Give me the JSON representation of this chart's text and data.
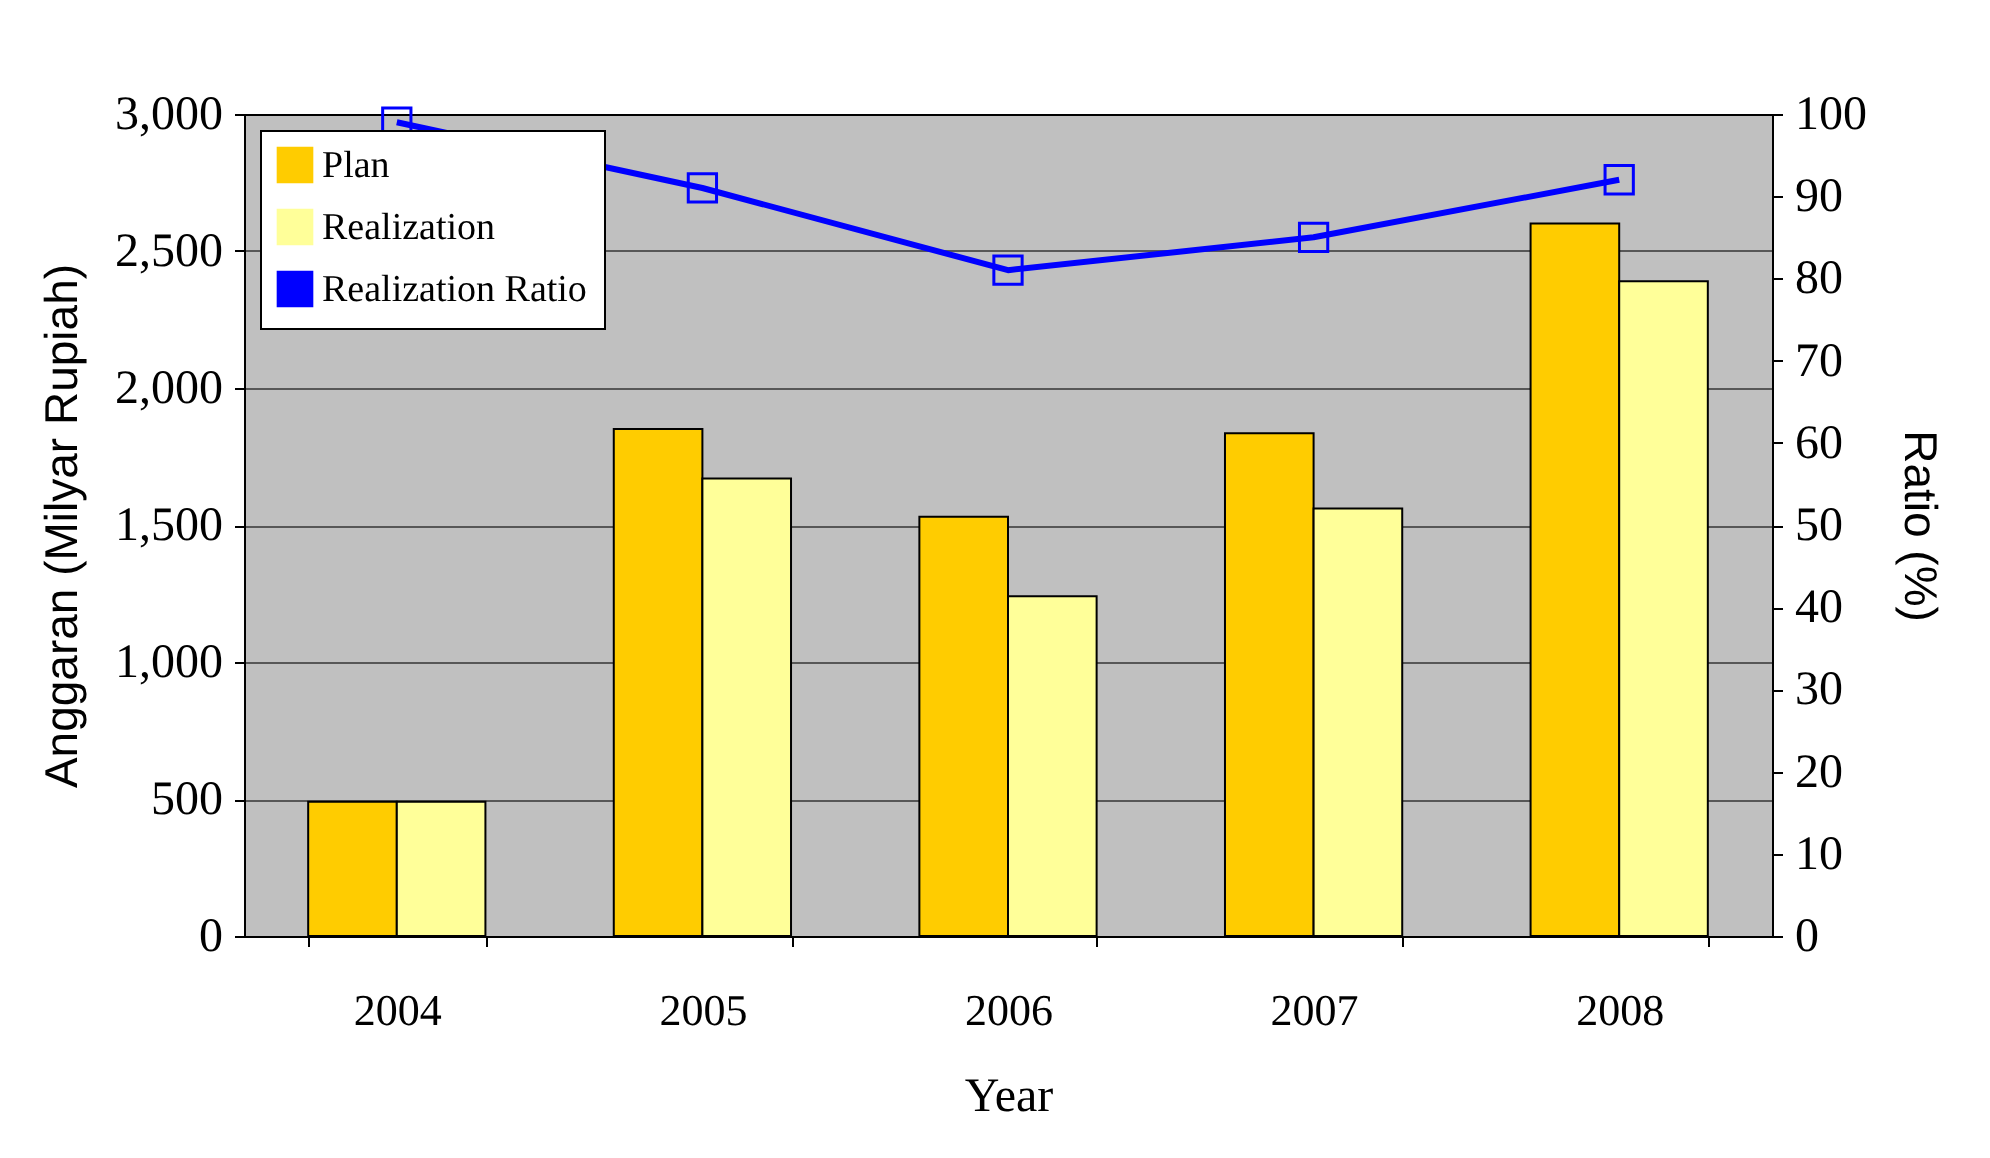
{
  "chart_data": {
    "type": "bar",
    "xlabel": "Year",
    "ylabel": "Anggaran (Milyar Rupiah)",
    "y2label": "Ratio (%)",
    "categories": [
      "2004",
      "2005",
      "2006",
      "2007",
      "2008"
    ],
    "series": [
      {
        "name": "Plan",
        "color": "#ffcc00",
        "values": [
          490,
          1850,
          1530,
          1835,
          2600
        ]
      },
      {
        "name": "Realization",
        "color": "#ffff99",
        "values": [
          490,
          1670,
          1240,
          1560,
          2390
        ]
      },
      {
        "name": "Realization Ratio",
        "type": "line",
        "axis": "y2",
        "color": "#0000ff",
        "marker": "square",
        "values": [
          99,
          91,
          81,
          85,
          92
        ]
      }
    ],
    "ylim": [
      0,
      3000
    ],
    "yticks": [
      0,
      500,
      {
        "value": 1000,
        "label": "1,000"
      },
      {
        "value": 1500,
        "label": "1,500"
      },
      {
        "value": 2000,
        "label": "2,000"
      },
      {
        "value": 2500,
        "label": "2,500"
      },
      {
        "value": 3000,
        "label": "3,000"
      }
    ],
    "y2lim": [
      0,
      100
    ],
    "y2ticks": [
      0,
      10,
      20,
      30,
      40,
      50,
      60,
      70,
      80,
      90,
      100
    ],
    "grid": "y",
    "legend": "top left"
  }
}
